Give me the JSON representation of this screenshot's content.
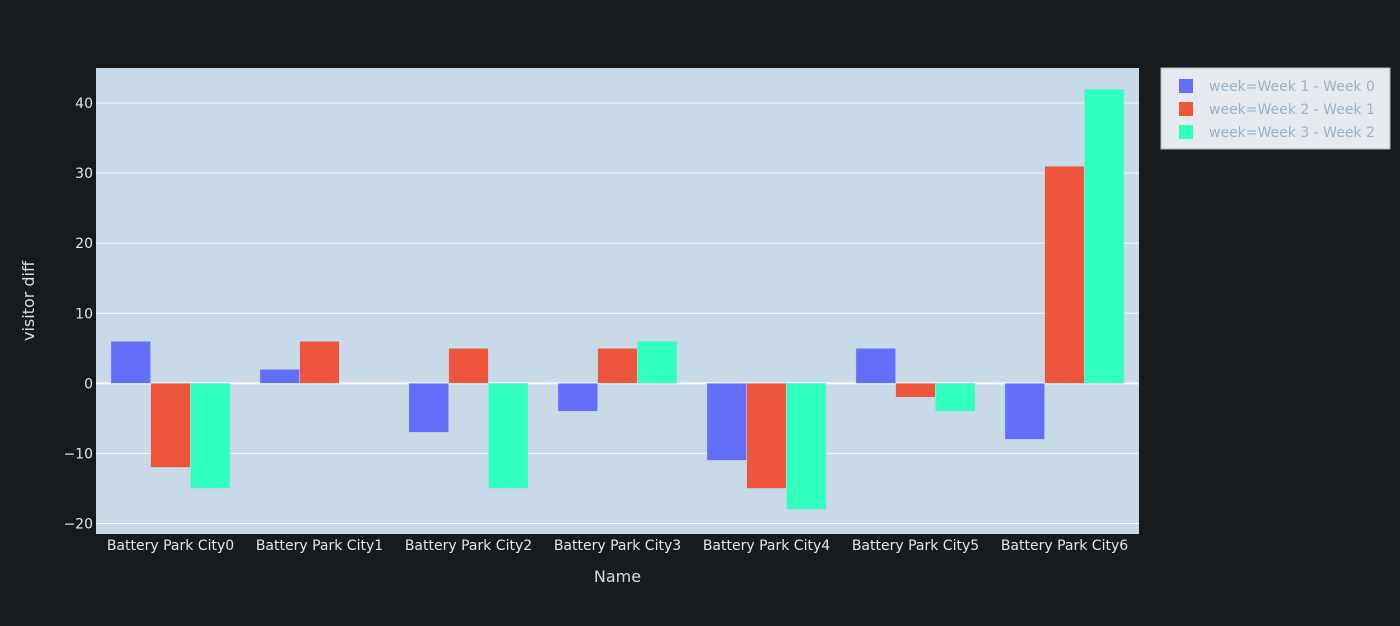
{
  "chart_data": {
    "type": "bar",
    "title": "",
    "xlabel": "Name",
    "ylabel": "visitor diff",
    "categories": [
      "Battery Park City0",
      "Battery Park City1",
      "Battery Park City2",
      "Battery Park City3",
      "Battery Park City4",
      "Battery Park City5",
      "Battery Park City6"
    ],
    "series": [
      {
        "name": "week=Week 1 - Week 0",
        "color": "#636efa",
        "values": [
          6,
          2,
          -7,
          -4,
          -11,
          5,
          -8
        ]
      },
      {
        "name": "week=Week 2 - Week 1",
        "color": "#ef553b",
        "values": [
          -12,
          6,
          5,
          5,
          -15,
          -2,
          31
        ]
      },
      {
        "name": "week=Week 3 - Week 2",
        "color": "#2fffbf",
        "values": [
          -15,
          0,
          -15,
          6,
          -18,
          -4,
          42
        ]
      }
    ],
    "ylim": [
      -21.5,
      45
    ],
    "yticks": [
      -20,
      -10,
      0,
      10,
      20,
      30,
      40
    ],
    "ytick_labels": [
      "−20",
      "−10",
      "0",
      "10",
      "20",
      "30",
      "40"
    ],
    "grid": true,
    "legend_position": "top-right",
    "plot_bg": "#c8d9e7",
    "paper_bg": "#171b1d"
  }
}
